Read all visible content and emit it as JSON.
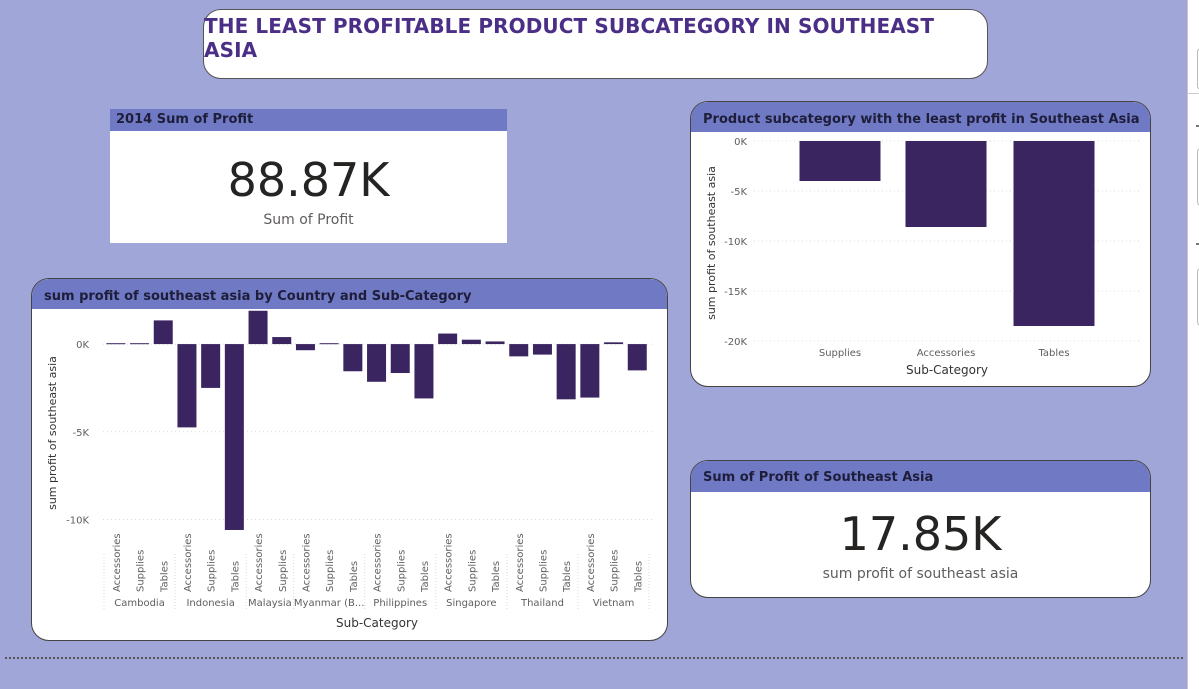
{
  "report_title": "THE LEAST PROFITABLE PRODUCT SUBCATEGORY IN SOUTHEAST ASIA",
  "kpi_2014": {
    "header": "2014 Sum of Profit",
    "value": "88.87K",
    "label": "Sum of Profit"
  },
  "kpi_sea": {
    "header": "Sum of Profit of Southeast Asia",
    "value": "17.85K",
    "label": "sum profit of southeast asia"
  },
  "chart_data": [
    {
      "type": "bar",
      "title": "sum profit of southeast asia by Country and Sub-Category",
      "xlabel": "Sub-Category",
      "ylabel": "sum profit of southeast asia",
      "ylim": [
        -11000,
        2000
      ],
      "yticks": [
        "0K",
        "-5K",
        "-10K"
      ],
      "grid": true,
      "color": "#3b2561",
      "groups": [
        {
          "country": "Cambodia",
          "categories": [
            "Accessories",
            "Supplies",
            "Tables"
          ],
          "values": [
            50,
            50,
            1350
          ]
        },
        {
          "country": "Indonesia",
          "categories": [
            "Accessories",
            "Supplies",
            "Tables"
          ],
          "values": [
            -4750,
            -2500,
            -10600
          ]
        },
        {
          "country": "Malaysia",
          "categories": [
            "Accessories",
            "Supplies"
          ],
          "values": [
            1900,
            400
          ]
        },
        {
          "country": "Myanmar (B...",
          "categories": [
            "Accessories",
            "Supplies",
            "Tables"
          ],
          "values": [
            -350,
            50,
            -1550
          ]
        },
        {
          "country": "Philippines",
          "categories": [
            "Accessories",
            "Supplies",
            "Tables"
          ],
          "values": [
            -2150,
            -1650,
            -3100
          ]
        },
        {
          "country": "Singapore",
          "categories": [
            "Accessories",
            "Supplies",
            "Tables"
          ],
          "values": [
            600,
            250,
            150
          ]
        },
        {
          "country": "Thailand",
          "categories": [
            "Accessories",
            "Supplies",
            "Tables"
          ],
          "values": [
            -700,
            -600,
            -3150
          ]
        },
        {
          "country": "Vietnam",
          "categories": [
            "Accessories",
            "Supplies",
            "Tables"
          ],
          "values": [
            -3050,
            100,
            -1500
          ]
        }
      ]
    },
    {
      "type": "bar",
      "title": "Product subcategory with the least profit in Southeast Asia",
      "xlabel": "Sub-Category",
      "ylabel": "sum profit of southeast asia",
      "categories": [
        "Supplies",
        "Accessories",
        "Tables"
      ],
      "values": [
        -4000,
        -8600,
        -18500
      ],
      "ylim": [
        -20000,
        0
      ],
      "yticks": [
        "0K",
        "-5K",
        "-10K",
        "-15K",
        "-20K"
      ],
      "grid": true,
      "color": "#3b2561"
    }
  ]
}
